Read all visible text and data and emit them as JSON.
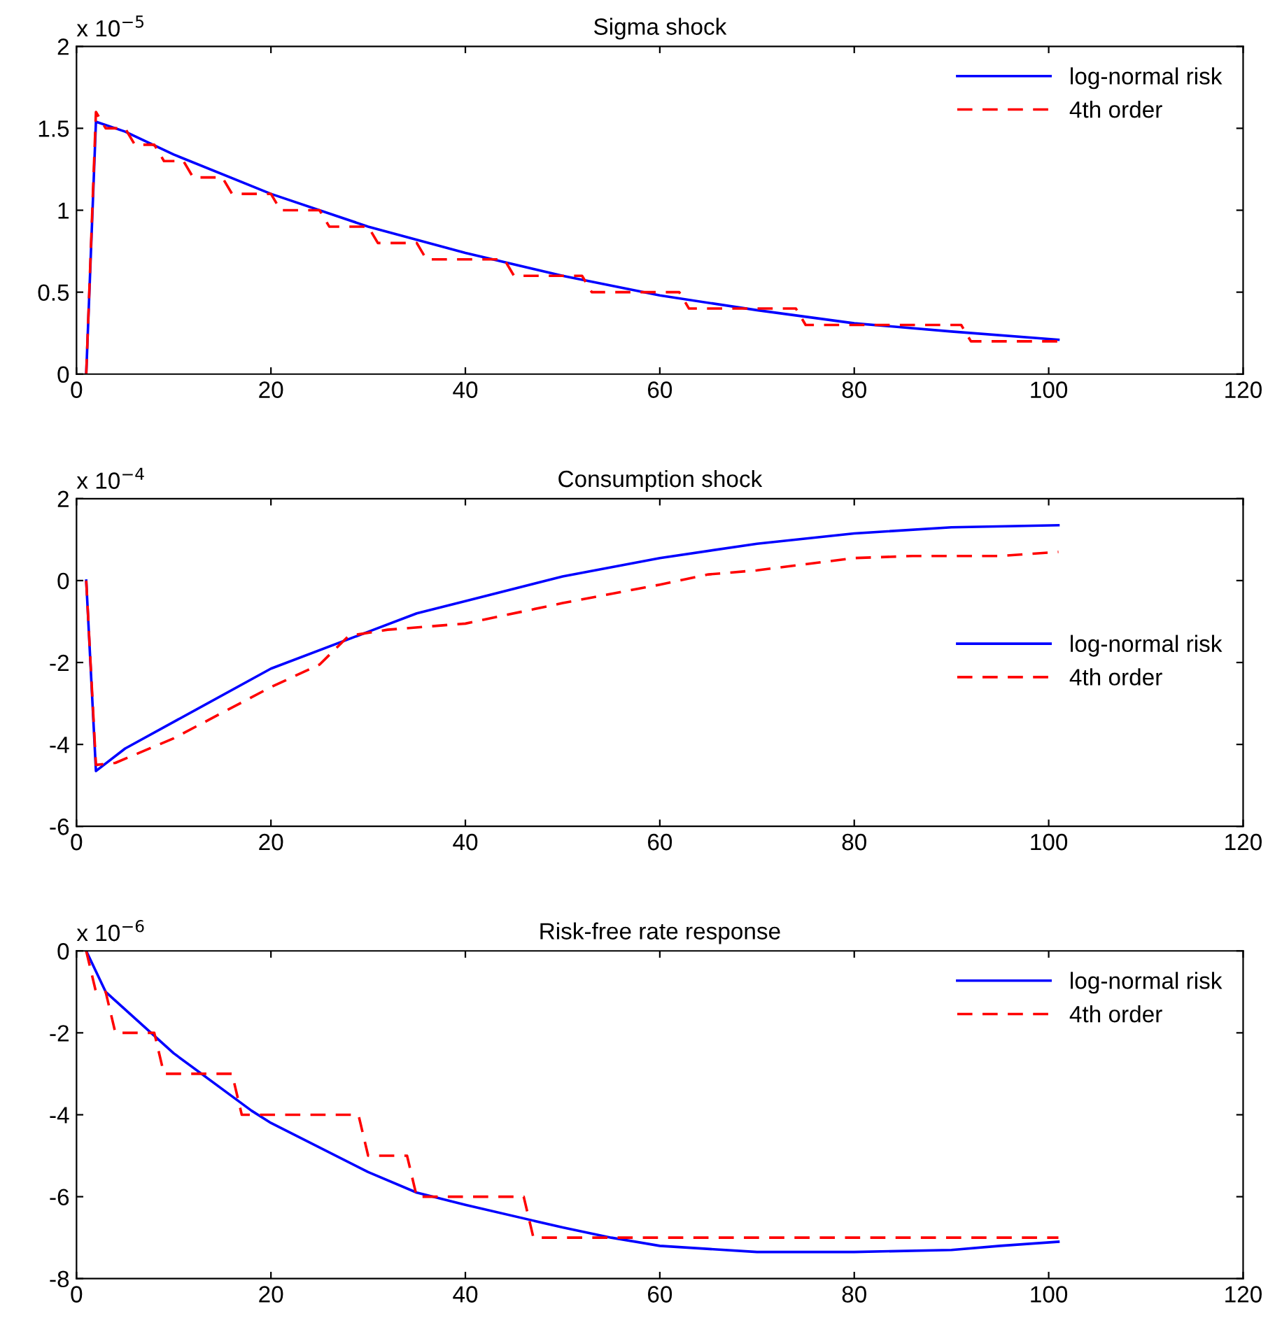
{
  "chart_data": [
    {
      "type": "line",
      "title": "Sigma shock",
      "annotations": [
        "x 10$^{−5}$"
      ],
      "xlim": [
        0,
        120
      ],
      "xticks": [
        0,
        20,
        40,
        60,
        80,
        100,
        120
      ],
      "ylim": [
        0,
        2
      ],
      "yticks": [
        0,
        0.5,
        1,
        1.5,
        2
      ],
      "legend": "top right",
      "grid": false,
      "series": [
        {
          "name": "log-normal risk",
          "color": "#0000ff",
          "line_style": "solid",
          "x": [
            1,
            2,
            5,
            10,
            20,
            30,
            40,
            50,
            60,
            70,
            80,
            90,
            101
          ],
          "values": [
            0,
            1.54,
            1.48,
            1.34,
            1.1,
            0.9,
            0.74,
            0.6,
            0.48,
            0.39,
            0.31,
            0.26,
            0.21
          ]
        },
        {
          "name": "4th order",
          "color": "#ff0000",
          "line_style": "dashed",
          "x": [
            1,
            2,
            3,
            5,
            6,
            8,
            9,
            11,
            12,
            15,
            16,
            20,
            21,
            25,
            26,
            30,
            31,
            35,
            36,
            44,
            45,
            52,
            53,
            62,
            63,
            74,
            75,
            91,
            92,
            101
          ],
          "values": [
            0,
            1.6,
            1.5,
            1.5,
            1.4,
            1.4,
            1.3,
            1.3,
            1.2,
            1.2,
            1.1,
            1.1,
            1.0,
            1.0,
            0.9,
            0.9,
            0.8,
            0.8,
            0.7,
            0.7,
            0.6,
            0.6,
            0.5,
            0.5,
            0.4,
            0.4,
            0.3,
            0.3,
            0.2,
            0.2
          ]
        }
      ]
    },
    {
      "type": "line",
      "title": "Consumption shock",
      "annotations": [
        "x 10$^{−4}$"
      ],
      "xlim": [
        0,
        120
      ],
      "xticks": [
        0,
        20,
        40,
        60,
        80,
        100,
        120
      ],
      "ylim": [
        -6,
        2
      ],
      "yticks": [
        -6,
        -4,
        -2,
        0,
        2
      ],
      "legend": "right",
      "grid": false,
      "series": [
        {
          "name": "log-normal risk",
          "color": "#0000ff",
          "line_style": "solid",
          "x": [
            1,
            2,
            5,
            10,
            20,
            30,
            35,
            40,
            50,
            60,
            70,
            80,
            90,
            101
          ],
          "values": [
            0,
            -4.65,
            -4.1,
            -3.45,
            -2.15,
            -1.25,
            -0.8,
            -0.5,
            0.1,
            0.55,
            0.9,
            1.15,
            1.3,
            1.35
          ]
        },
        {
          "name": "4th order",
          "color": "#ff0000",
          "line_style": "dashed",
          "x": [
            1,
            2,
            4,
            10,
            20,
            25,
            28,
            32,
            40,
            50,
            60,
            65,
            70,
            80,
            86,
            95,
            101
          ],
          "values": [
            0,
            -4.5,
            -4.45,
            -3.85,
            -2.6,
            -2.05,
            -1.35,
            -1.2,
            -1.05,
            -0.55,
            -0.1,
            0.15,
            0.25,
            0.55,
            0.6,
            0.6,
            0.7
          ]
        }
      ]
    },
    {
      "type": "line",
      "title": "Risk-free rate response",
      "annotations": [
        "x 10$^{−6}$"
      ],
      "xlim": [
        0,
        120
      ],
      "xticks": [
        0,
        20,
        40,
        60,
        80,
        100,
        120
      ],
      "ylim": [
        -8,
        0
      ],
      "yticks": [
        -8,
        -6,
        -4,
        -2,
        0
      ],
      "legend": "top right",
      "grid": false,
      "series": [
        {
          "name": "log-normal risk",
          "color": "#0000ff",
          "line_style": "solid",
          "x": [
            1,
            3,
            10,
            18,
            20,
            30,
            35,
            40,
            50,
            55,
            60,
            70,
            80,
            90,
            95,
            101
          ],
          "values": [
            0,
            -1,
            -2.5,
            -3.9,
            -4.2,
            -5.4,
            -5.9,
            -6.2,
            -6.75,
            -7,
            -7.2,
            -7.35,
            -7.35,
            -7.3,
            -7.2,
            -7.1
          ]
        },
        {
          "name": "4th order",
          "color": "#ff0000",
          "line_style": "dashed",
          "x": [
            1,
            2,
            3,
            4,
            8,
            9,
            16,
            17,
            29,
            30,
            34,
            35,
            46,
            47,
            101
          ],
          "values": [
            0,
            -1,
            -1,
            -2,
            -2,
            -3,
            -3,
            -4,
            -4,
            -5,
            -5,
            -6,
            -6,
            -7,
            -7
          ]
        }
      ]
    }
  ]
}
